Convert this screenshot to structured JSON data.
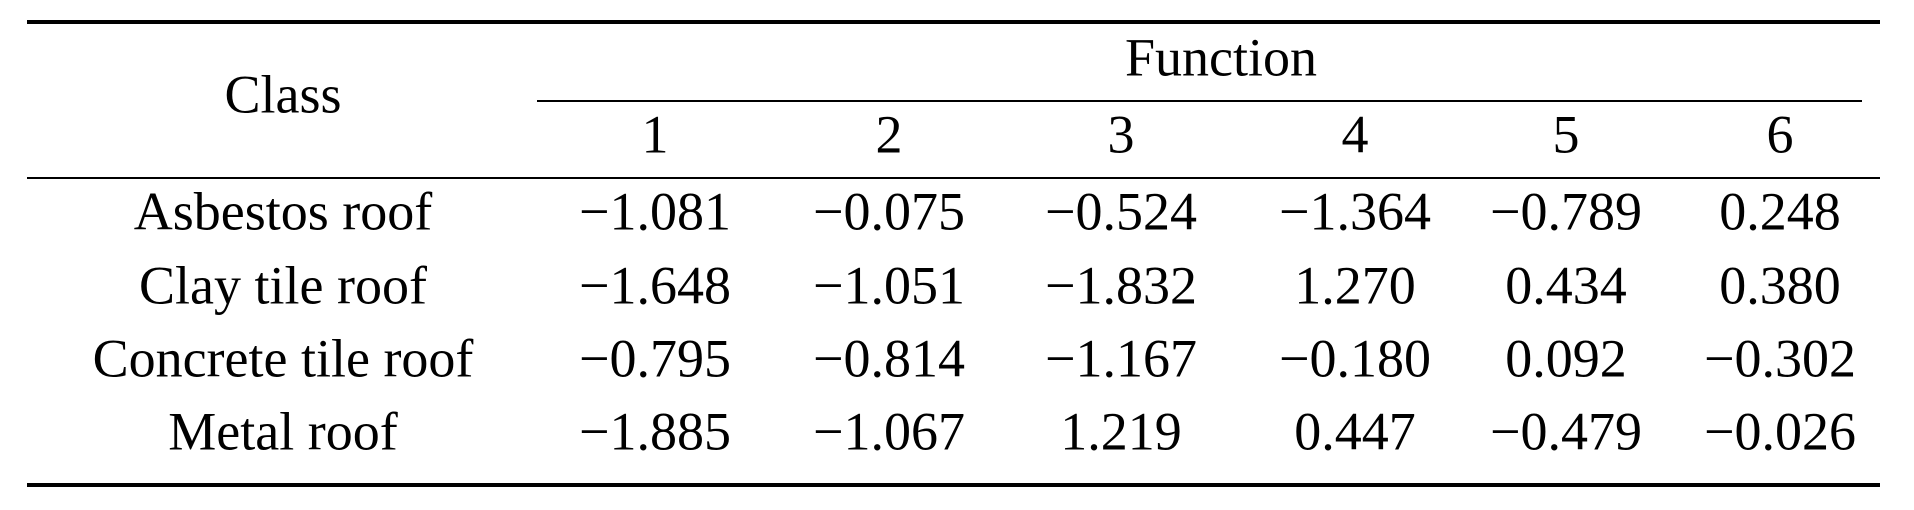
{
  "table": {
    "header": {
      "class": "Class",
      "function": "Function",
      "columns": [
        "1",
        "2",
        "3",
        "4",
        "5",
        "6"
      ]
    },
    "rows": [
      [
        "Asbestos roof",
        "−1.081",
        "−0.075",
        "−0.524",
        "−1.364",
        "−0.789",
        "0.248"
      ],
      [
        "Clay tile roof",
        "−1.648",
        "−1.051",
        "−1.832",
        "1.270",
        "0.434",
        "0.380"
      ],
      [
        "Concrete tile roof",
        "−0.795",
        "−0.814",
        "−1.167",
        "−0.180",
        "0.092",
        "−0.302"
      ],
      [
        "Metal roof",
        "−1.885",
        "−1.067",
        "1.219",
        "0.447",
        "−0.479",
        "−0.026"
      ]
    ]
  }
}
